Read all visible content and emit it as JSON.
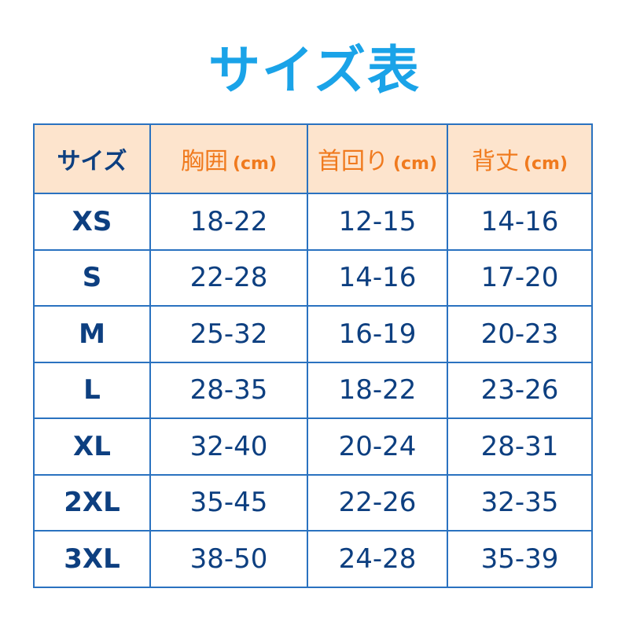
{
  "title": "サイズ表",
  "colors": {
    "title": "#1aa3e8",
    "header_bg": "#fde4cd",
    "header_text": "#f07a1e",
    "body_text": "#0d3f80",
    "border": "#2a72c0"
  },
  "headers": [
    {
      "label": "サイズ",
      "unit": ""
    },
    {
      "label": "胸囲",
      "unit": "(cm)"
    },
    {
      "label": "首回り",
      "unit": "(cm)"
    },
    {
      "label": "背丈",
      "unit": "(cm)"
    }
  ],
  "rows": [
    [
      "XS",
      "18-22",
      "12-15",
      "14-16"
    ],
    [
      "S",
      "22-28",
      "14-16",
      "17-20"
    ],
    [
      "M",
      "25-32",
      "16-19",
      "20-23"
    ],
    [
      "L",
      "28-35",
      "18-22",
      "23-26"
    ],
    [
      "XL",
      "32-40",
      "20-24",
      "28-31"
    ],
    [
      "2XL",
      "35-45",
      "22-26",
      "32-35"
    ],
    [
      "3XL",
      "38-50",
      "24-28",
      "35-39"
    ]
  ]
}
